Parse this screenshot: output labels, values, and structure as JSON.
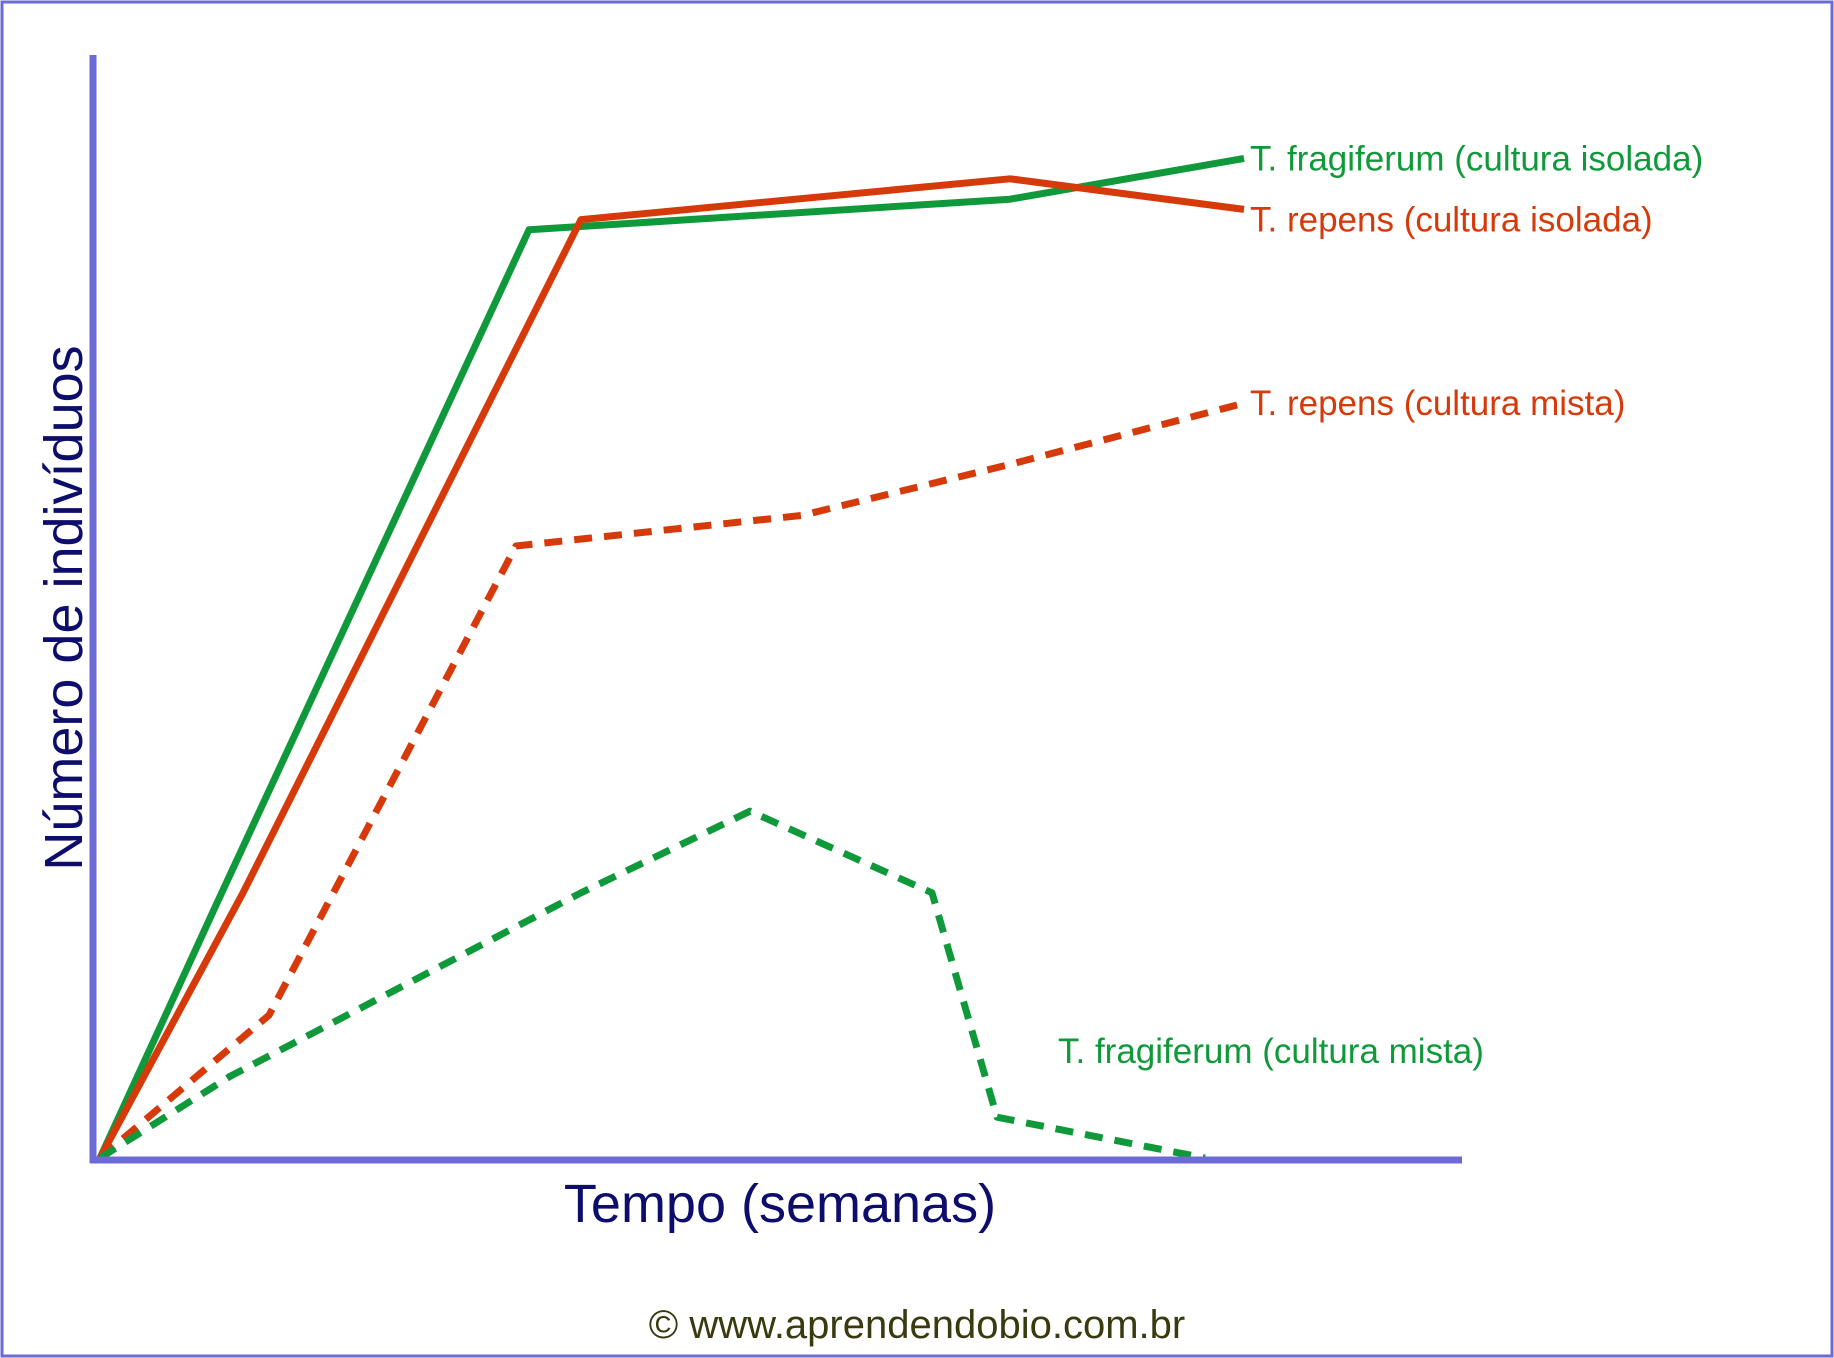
{
  "chart_data": {
    "type": "line",
    "xlabel": "Tempo (semanas)",
    "ylabel": "Número de indivíduos",
    "xlim": [
      0,
      10
    ],
    "ylim": [
      0,
      100
    ],
    "grid": false,
    "legend": "inline labels at line ends",
    "series": [
      {
        "name": "T. fragiferum (cultura isolada)",
        "color": "#10993a",
        "style": "solid",
        "x": [
          0,
          0.9,
          3.3,
          7.0,
          8.8
        ],
        "y": [
          0,
          25,
          91,
          94,
          98
        ]
      },
      {
        "name": "T. repens (cultura isolada)",
        "color": "#d63a0a",
        "style": "solid",
        "x": [
          0,
          1.1,
          3.7,
          7.0,
          8.8
        ],
        "y": [
          0,
          26,
          92,
          96,
          93
        ]
      },
      {
        "name": "T. repens (cultura mista)",
        "color": "#d63a0a",
        "style": "dashed",
        "x": [
          0,
          1.3,
          3.2,
          5.4,
          7.0,
          8.8
        ],
        "y": [
          0,
          14,
          60,
          63,
          68,
          74
        ]
      },
      {
        "name": "T. fragiferum (cultura mista)",
        "color": "#10993a",
        "style": "dashed",
        "x": [
          0,
          1.0,
          3.7,
          5.0,
          6.4,
          6.9,
          8.5
        ],
        "y": [
          0,
          8,
          26,
          34,
          26,
          4,
          0
        ]
      }
    ]
  },
  "footer": {
    "credit": "© www.aprendendobio.com.br"
  },
  "colors": {
    "axis": "#6b6bd6",
    "axis_title": "#0d0d6b",
    "credit": "#3a3a0f"
  }
}
